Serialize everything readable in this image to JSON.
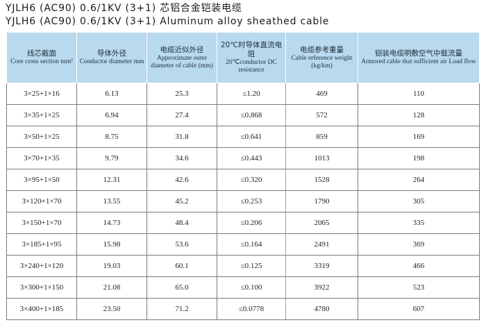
{
  "title_cn": "YJLH6 (AC90) 0.6/1KV (3+1) 芯铝合金铠装电缆",
  "title_en": "YJLH6 (AC90) 0.6/1KV (3+1) Aluminum alloy sheathed cable",
  "headers": [
    {
      "cn": "线芯截面",
      "en": "Core cross section mm²"
    },
    {
      "cn": "导体外径",
      "en": "Conductor diameter mm"
    },
    {
      "cn": "电缆近似外径",
      "en": "Approximate outer diameter of cable (mm)"
    },
    {
      "cn": "20℃时导体直流电阻",
      "en": "20℃conductor DC resistance"
    },
    {
      "cn": "电缆参考重量",
      "en": "Cable reference weight (kg/km)"
    },
    {
      "cn": "铠装电缆明敷空气中载流量",
      "en": "Armored cable that sufficient air Load flow"
    }
  ],
  "rows": [
    [
      "3×25+1×16",
      "6.13",
      "25.3",
      "≤1.20",
      "469",
      "110"
    ],
    [
      "3×35+1×25",
      "6.94",
      "27.4",
      "≤0.868",
      "572",
      "128"
    ],
    [
      "3×50+1×25",
      "8.75",
      "31.8",
      "≤0.641",
      "859",
      "169"
    ],
    [
      "3×70+1×35",
      "9.79",
      "34.6",
      "≤0.443",
      "1013",
      "198"
    ],
    [
      "3×95+1×50",
      "12.31",
      "42.6",
      "≤0.320",
      "1528",
      "264"
    ],
    [
      "3×120+1×70",
      "13.55",
      "45.2",
      "≤0.253",
      "1790",
      "305"
    ],
    [
      "3×150+1×70",
      "14.73",
      "48.4",
      "≤0.206",
      "2065",
      "335"
    ],
    [
      "3×185+1×95",
      "15.98",
      "53.6",
      "≤0.164",
      "2491",
      "369"
    ],
    [
      "3×240+1×120",
      "19.03",
      "60.1",
      "≤0.125",
      "3319",
      "466"
    ],
    [
      "3×300+1×150",
      "21.08",
      "65.0",
      "≤0.100",
      "3922",
      "523"
    ],
    [
      "3×400+1×185",
      "23.50",
      "71.2",
      "≤0.0778",
      "4780",
      "607"
    ]
  ],
  "colors": {
    "header_bg": "#b8d9ee",
    "grid": "#7a7a7a"
  }
}
